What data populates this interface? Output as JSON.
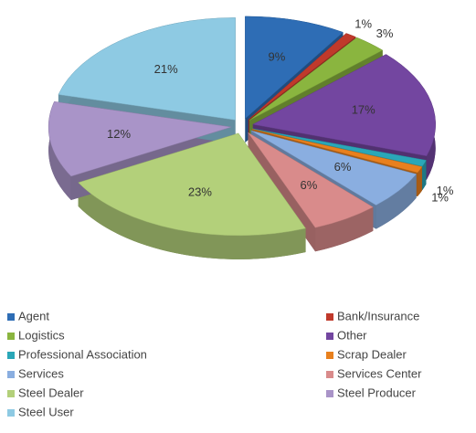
{
  "chart_data": {
    "type": "pie",
    "categories": [
      "Agent",
      "Bank/Insurance",
      "Logistics",
      "Other",
      "Professional Association",
      "Scrap Dealer",
      "Services",
      "Services Center",
      "Steel Dealer",
      "Steel Producer",
      "Steel User"
    ],
    "values": [
      9,
      1,
      3,
      17,
      1,
      1,
      6,
      6,
      23,
      12,
      21
    ],
    "value_labels": [
      "9%",
      "1%",
      "3%",
      "17%",
      "1%",
      "1%",
      "6%",
      "6%",
      "23%",
      "12%",
      "21%"
    ],
    "colors": [
      "#2e6db5",
      "#c0392b",
      "#8ab53f",
      "#7346a0",
      "#2aa7b8",
      "#e8801e",
      "#8aaee0",
      "#d98b8b",
      "#b3d07a",
      "#a994c8",
      "#8ecae3"
    ],
    "legend": "bottom"
  }
}
